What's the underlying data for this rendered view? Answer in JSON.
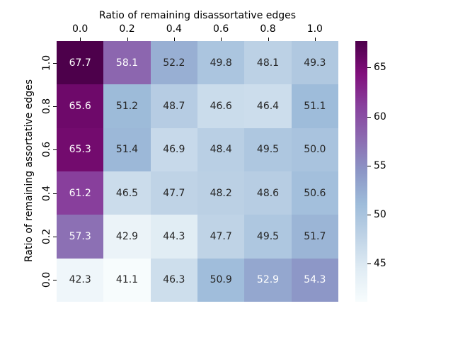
{
  "figure": {
    "background": "#ffffff"
  },
  "chart_data": {
    "type": "heatmap",
    "xlabel": "Ratio of remaining disassortative edges",
    "ylabel": "Ratio of remaining assortative edges",
    "xlabel_position": "top",
    "x_tick_labels": [
      "0.0",
      "0.2",
      "0.4",
      "0.6",
      "0.8",
      "1.0"
    ],
    "y_tick_labels": [
      "1.0",
      "0.8",
      "0.6",
      "0.4",
      "0.2",
      "0.0"
    ],
    "values": [
      [
        67.7,
        58.1,
        52.2,
        49.8,
        48.1,
        49.3
      ],
      [
        65.6,
        51.2,
        48.7,
        46.6,
        46.4,
        51.1
      ],
      [
        65.3,
        51.4,
        46.9,
        48.4,
        49.5,
        50.0
      ],
      [
        61.2,
        46.5,
        47.7,
        48.2,
        48.6,
        50.6
      ],
      [
        57.3,
        42.9,
        44.3,
        47.7,
        49.5,
        51.7
      ],
      [
        42.3,
        41.1,
        46.3,
        50.9,
        52.9,
        54.3
      ]
    ],
    "value_format_decimals": 1,
    "vmin": 41.1,
    "vmax": 67.7,
    "colorbar_ticks": [
      45,
      50,
      55,
      60,
      65
    ],
    "colorbar_position": "right",
    "grid": false,
    "colormap": {
      "name": "BuPu",
      "stops": [
        "#f7fcfd",
        "#e0ecf4",
        "#bfd3e6",
        "#9ebcda",
        "#8c96c6",
        "#8c6bb1",
        "#88419d",
        "#810f7c",
        "#4d004b"
      ]
    },
    "annotation_text_colors": {
      "on_dark": "#ffffff",
      "on_light": "#262626",
      "luminance_threshold": 0.408
    }
  }
}
